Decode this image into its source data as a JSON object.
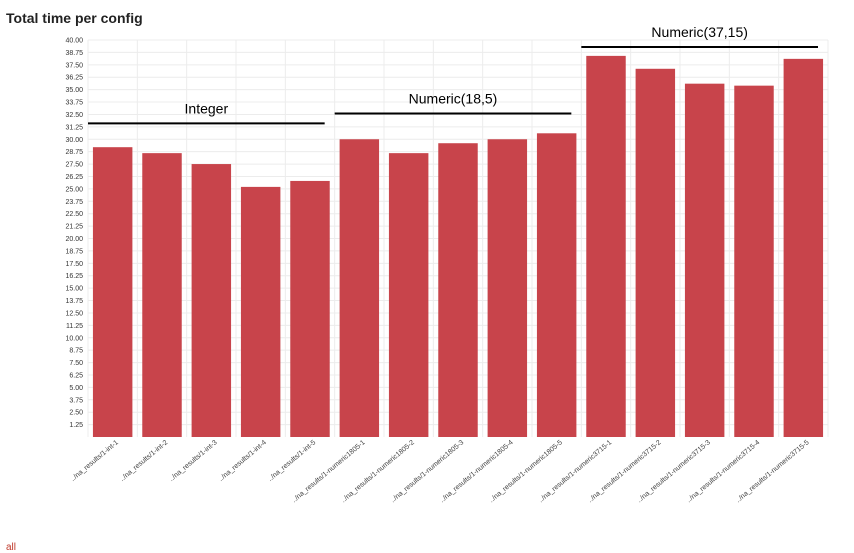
{
  "page": {
    "title": "Total time per config",
    "legend_hint": "all"
  },
  "chart_data": {
    "type": "bar",
    "title": "Total time per config",
    "xlabel": "",
    "ylabel": "",
    "ylim": [
      0,
      40
    ],
    "grid": true,
    "bar_color": "#c8444b",
    "categories": [
      "../na_results/1-int-1",
      "../na_results/1-int-2",
      "../na_results/1-int-3",
      "../na_results/1-int-4",
      "../na_results/1-int-5",
      "../na_results/1-numeric1805-1",
      "../na_results/1-numeric1805-2",
      "../na_results/1-numeric1805-3",
      "../na_results/1-numeric1805-4",
      "../na_results/1-numeric1805-5",
      "../na_results/1-numeric3715-1",
      "../na_results/1-numeric3715-2",
      "../na_results/1-numeric3715-3",
      "../na_results/1-numeric3715-4",
      "../na_results/1-numeric3715-5"
    ],
    "values": [
      29.2,
      28.6,
      27.5,
      25.2,
      25.8,
      30.0,
      28.6,
      29.6,
      30.0,
      30.6,
      38.4,
      37.1,
      35.6,
      35.4,
      38.1
    ],
    "yticks": [
      "1.25",
      "2.50",
      "3.75",
      "5.00",
      "6.25",
      "7.50",
      "8.75",
      "10.00",
      "11.25",
      "12.50",
      "13.75",
      "15.00",
      "16.25",
      "17.50",
      "18.75",
      "20.00",
      "21.25",
      "22.50",
      "23.75",
      "25.00",
      "26.25",
      "27.50",
      "28.75",
      "30.00",
      "31.25",
      "32.50",
      "33.75",
      "35.00",
      "36.25",
      "37.50",
      "38.75",
      "40.00"
    ],
    "annotations": [
      {
        "text": "Integer",
        "from": 0,
        "to": 4,
        "y": 31.6
      },
      {
        "text": "Numeric(18,5)",
        "from": 5,
        "to": 9,
        "y": 32.6
      },
      {
        "text": "Numeric(37,15)",
        "from": 10,
        "to": 14,
        "y": 39.3
      }
    ]
  }
}
